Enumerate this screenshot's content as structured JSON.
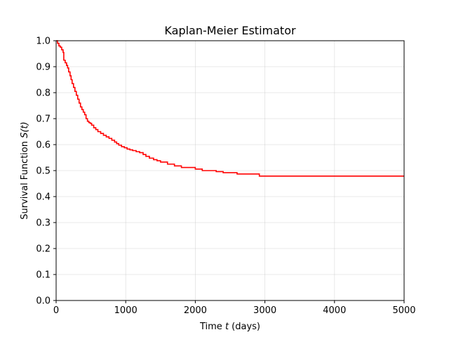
{
  "chart_data": {
    "type": "line",
    "title": "Kaplan-Meier Estimator",
    "xlabel_pre": "Time ",
    "xlabel_var": "t",
    "xlabel_post": " (days)",
    "ylabel_pre": "Survival Function ",
    "ylabel_var": "S(t)",
    "xlim": [
      0,
      5000
    ],
    "ylim": [
      0.0,
      1.0
    ],
    "xticks": [
      0,
      1000,
      2000,
      3000,
      4000,
      5000
    ],
    "xtick_labels": [
      "0",
      "1000",
      "2000",
      "3000",
      "4000",
      "5000"
    ],
    "yticks": [
      0.0,
      0.1,
      0.2,
      0.3,
      0.4,
      0.5,
      0.6,
      0.7,
      0.8,
      0.9,
      1.0
    ],
    "ytick_labels": [
      "0.0",
      "0.1",
      "0.2",
      "0.3",
      "0.4",
      "0.5",
      "0.6",
      "0.7",
      "0.8",
      "0.9",
      "1.0"
    ],
    "grid": true,
    "series": [
      {
        "color": "#ff0000",
        "step": true,
        "x": [
          0,
          20,
          40,
          60,
          80,
          100,
          110,
          130,
          150,
          165,
          180,
          200,
          215,
          230,
          250,
          270,
          290,
          310,
          330,
          350,
          370,
          390,
          410,
          430,
          450,
          470,
          490,
          510,
          540,
          570,
          600,
          640,
          680,
          720,
          760,
          800,
          840,
          870,
          900,
          940,
          980,
          1020,
          1060,
          1100,
          1150,
          1200,
          1250,
          1290,
          1340,
          1400,
          1450,
          1500,
          1600,
          1700,
          1800,
          2000,
          2100,
          2300,
          2400,
          2600,
          2920,
          5000
        ],
        "y": [
          1.0,
          0.99,
          0.98,
          0.975,
          0.965,
          0.955,
          0.925,
          0.915,
          0.905,
          0.895,
          0.88,
          0.865,
          0.85,
          0.835,
          0.82,
          0.805,
          0.79,
          0.775,
          0.76,
          0.745,
          0.735,
          0.725,
          0.715,
          0.7,
          0.69,
          0.685,
          0.682,
          0.675,
          0.665,
          0.658,
          0.65,
          0.643,
          0.636,
          0.63,
          0.624,
          0.617,
          0.61,
          0.604,
          0.598,
          0.592,
          0.588,
          0.583,
          0.58,
          0.577,
          0.573,
          0.569,
          0.562,
          0.555,
          0.548,
          0.542,
          0.538,
          0.533,
          0.525,
          0.518,
          0.512,
          0.506,
          0.5,
          0.496,
          0.492,
          0.487,
          0.479,
          0.479
        ]
      }
    ]
  }
}
